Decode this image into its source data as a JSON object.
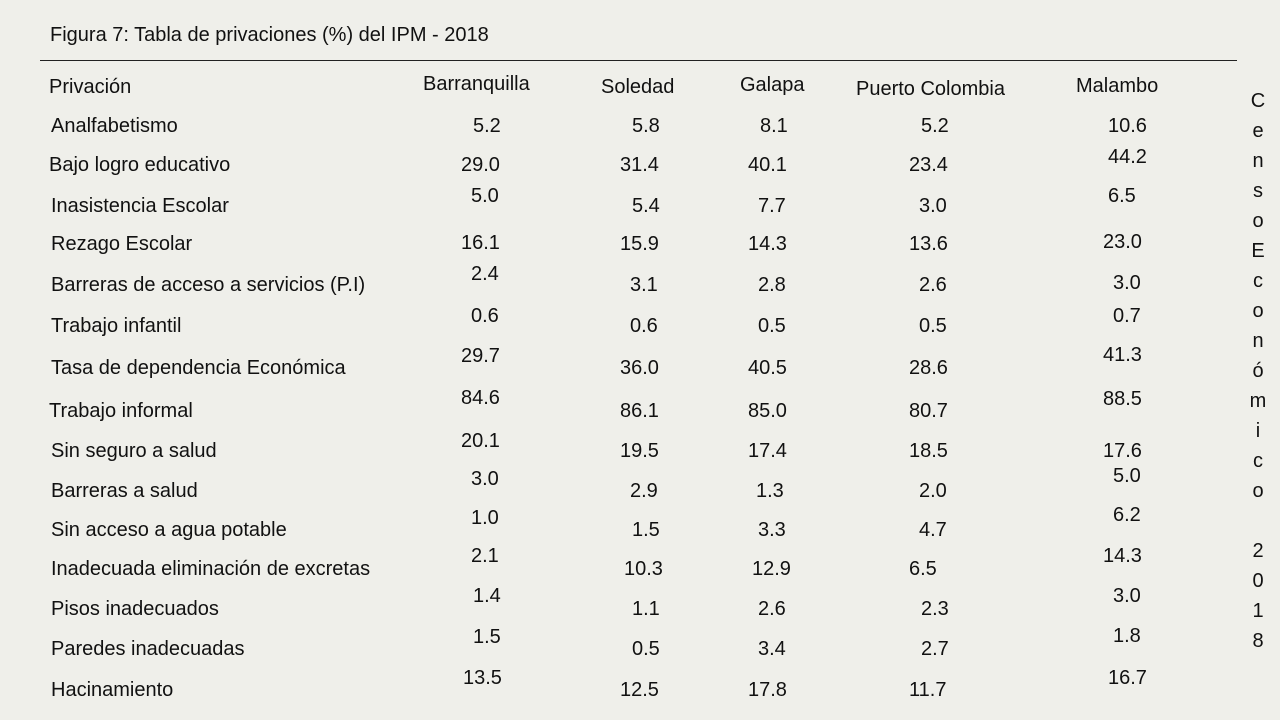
{
  "title": "Figura 7: Tabla de privaciones (%) del IPM - 2018",
  "side_label": [
    "C",
    "e",
    "n",
    "s",
    "o",
    "E",
    "c",
    "o",
    "n",
    "ó",
    "m",
    "i",
    "c",
    "o",
    "",
    "2",
    "0",
    "1",
    "8"
  ],
  "table": {
    "headers": [
      "Privación",
      "Barranquilla",
      "Soledad",
      "Galapa",
      "Puerto Colombia",
      "Malambo"
    ],
    "rows": [
      {
        "label": "Analfabetismo",
        "values": [
          "5.2",
          "5.8",
          "8.1",
          "5.2",
          "10.6"
        ]
      },
      {
        "label": "Bajo logro educativo",
        "values": [
          "29.0",
          "31.4",
          "40.1",
          "23.4",
          "44.2"
        ]
      },
      {
        "label": "Inasistencia Escolar",
        "values": [
          "5.0",
          "5.4",
          "7.7",
          "3.0",
          "6.5"
        ]
      },
      {
        "label": "Rezago Escolar",
        "values": [
          "16.1",
          "15.9",
          "14.3",
          "13.6",
          "23.0"
        ]
      },
      {
        "label": "Barreras de acceso a servicios (P.I)",
        "values": [
          "2.4",
          "3.1",
          "2.8",
          "2.6",
          "3.0"
        ]
      },
      {
        "label": "Trabajo infantil",
        "values": [
          "0.6",
          "0.6",
          "0.5",
          "0.5",
          "0.7"
        ]
      },
      {
        "label": "Tasa de dependencia Económica",
        "values": [
          "29.7",
          "36.0",
          "40.5",
          "28.6",
          "41.3"
        ]
      },
      {
        "label": "Trabajo informal",
        "values": [
          "84.6",
          "86.1",
          "85.0",
          "80.7",
          "88.5"
        ]
      },
      {
        "label": "Sin seguro a salud",
        "values": [
          "20.1",
          "19.5",
          "17.4",
          "18.5",
          "17.6"
        ]
      },
      {
        "label": "Barreras a salud",
        "values": [
          "3.0",
          "2.9",
          "1.3",
          "2.0",
          "5.0"
        ]
      },
      {
        "label": "Sin acceso a agua potable",
        "values": [
          "1.0",
          "1.5",
          "3.3",
          "4.7",
          "6.2"
        ]
      },
      {
        "label": "Inadecuada eliminación de excretas",
        "values": [
          "2.1",
          "10.3",
          "12.9",
          "6.5",
          "14.3"
        ]
      },
      {
        "label": "Pisos inadecuados",
        "values": [
          "1.4",
          "1.1",
          "2.6",
          "2.3",
          "3.0"
        ]
      },
      {
        "label": "Paredes inadecuadas",
        "values": [
          "1.5",
          "0.5",
          "3.4",
          "2.7",
          "1.8"
        ]
      },
      {
        "label": "Hacinamiento",
        "values": [
          "13.5",
          "12.5",
          "17.8",
          "11.7",
          "16.7"
        ]
      }
    ]
  }
}
